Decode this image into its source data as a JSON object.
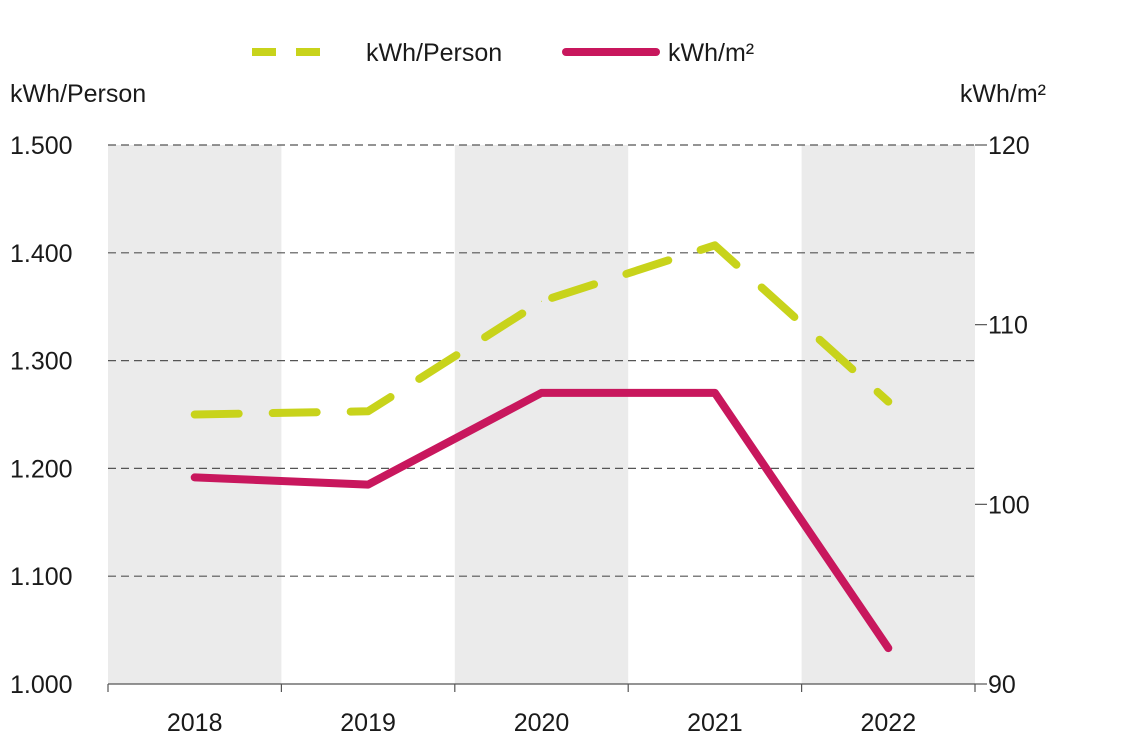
{
  "chart_data": {
    "type": "line",
    "categories": [
      "2018",
      "2019",
      "2020",
      "2021",
      "2022"
    ],
    "left_axis": {
      "label": "kWh/Person",
      "ylim": [
        1000,
        1500
      ],
      "ticks": [
        1000,
        1100,
        1200,
        1300,
        1400,
        1500
      ],
      "tick_labels": [
        "1.000",
        "1.100",
        "1.200",
        "1.300",
        "1.400",
        "1.500"
      ]
    },
    "right_axis": {
      "label": "kWh/m²",
      "ylim": [
        90,
        120
      ],
      "ticks": [
        90,
        100,
        110,
        120
      ],
      "tick_labels": [
        "90",
        "100",
        "110",
        "120"
      ]
    },
    "series": [
      {
        "name": "kWh/Person",
        "axis": "left",
        "style": "dashed",
        "color": "#c8d31b",
        "values": [
          1250,
          1253,
          1355,
          1407,
          1262
        ]
      },
      {
        "name": "kWh/m²",
        "axis": "right",
        "style": "solid",
        "color": "#c8175d",
        "values": [
          101.5,
          101.1,
          106.2,
          106.2,
          92.0
        ]
      }
    ],
    "legend": {
      "position": "top",
      "entries": [
        "kWh/Person",
        "kWh/m²"
      ]
    },
    "grid": {
      "horizontal": true,
      "style": "dashed"
    },
    "alternating_column_bands": true,
    "band_color": "#ebebeb"
  }
}
